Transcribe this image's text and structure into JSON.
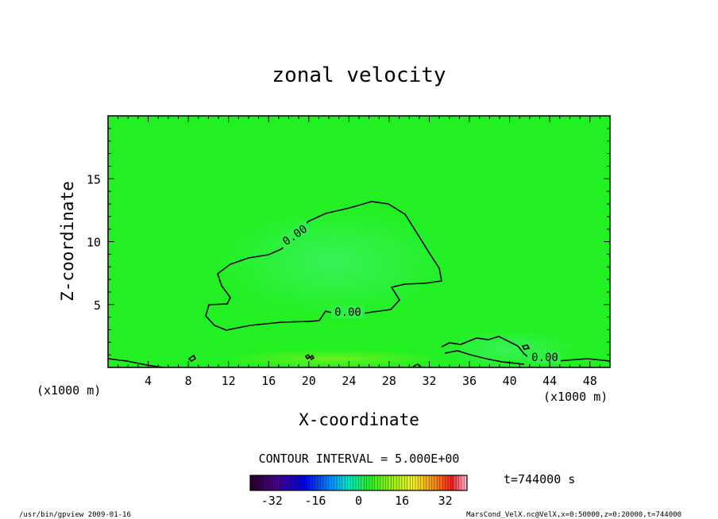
{
  "chart_data": {
    "type": "heatmap",
    "title": "zonal velocity",
    "xlabel": "X-coordinate",
    "ylabel": "Z-coordinate",
    "x_unit": "(x1000 m)",
    "y_unit": "(x1000 m)",
    "xlim": [
      0,
      50
    ],
    "ylim": [
      0,
      20
    ],
    "x_ticks": [
      4,
      8,
      12,
      16,
      20,
      24,
      28,
      32,
      36,
      40,
      44,
      48
    ],
    "y_ticks": [
      5,
      10,
      15
    ],
    "contour_interval_text": "CONTOUR INTERVAL = 5.000E+00",
    "contour_label": "0.00",
    "time_text": "t=744000 s",
    "colorbar": {
      "range": [
        -40,
        40
      ],
      "ticks": [
        -32,
        -16,
        0,
        16,
        32
      ]
    },
    "footer_left": "/usr/bin/gpview  2009-01-16",
    "footer_right": "MarsCond_VelX.nc@VelX,x=0:50000,z=0:20000,t=744000",
    "field_color": "#22f022"
  }
}
